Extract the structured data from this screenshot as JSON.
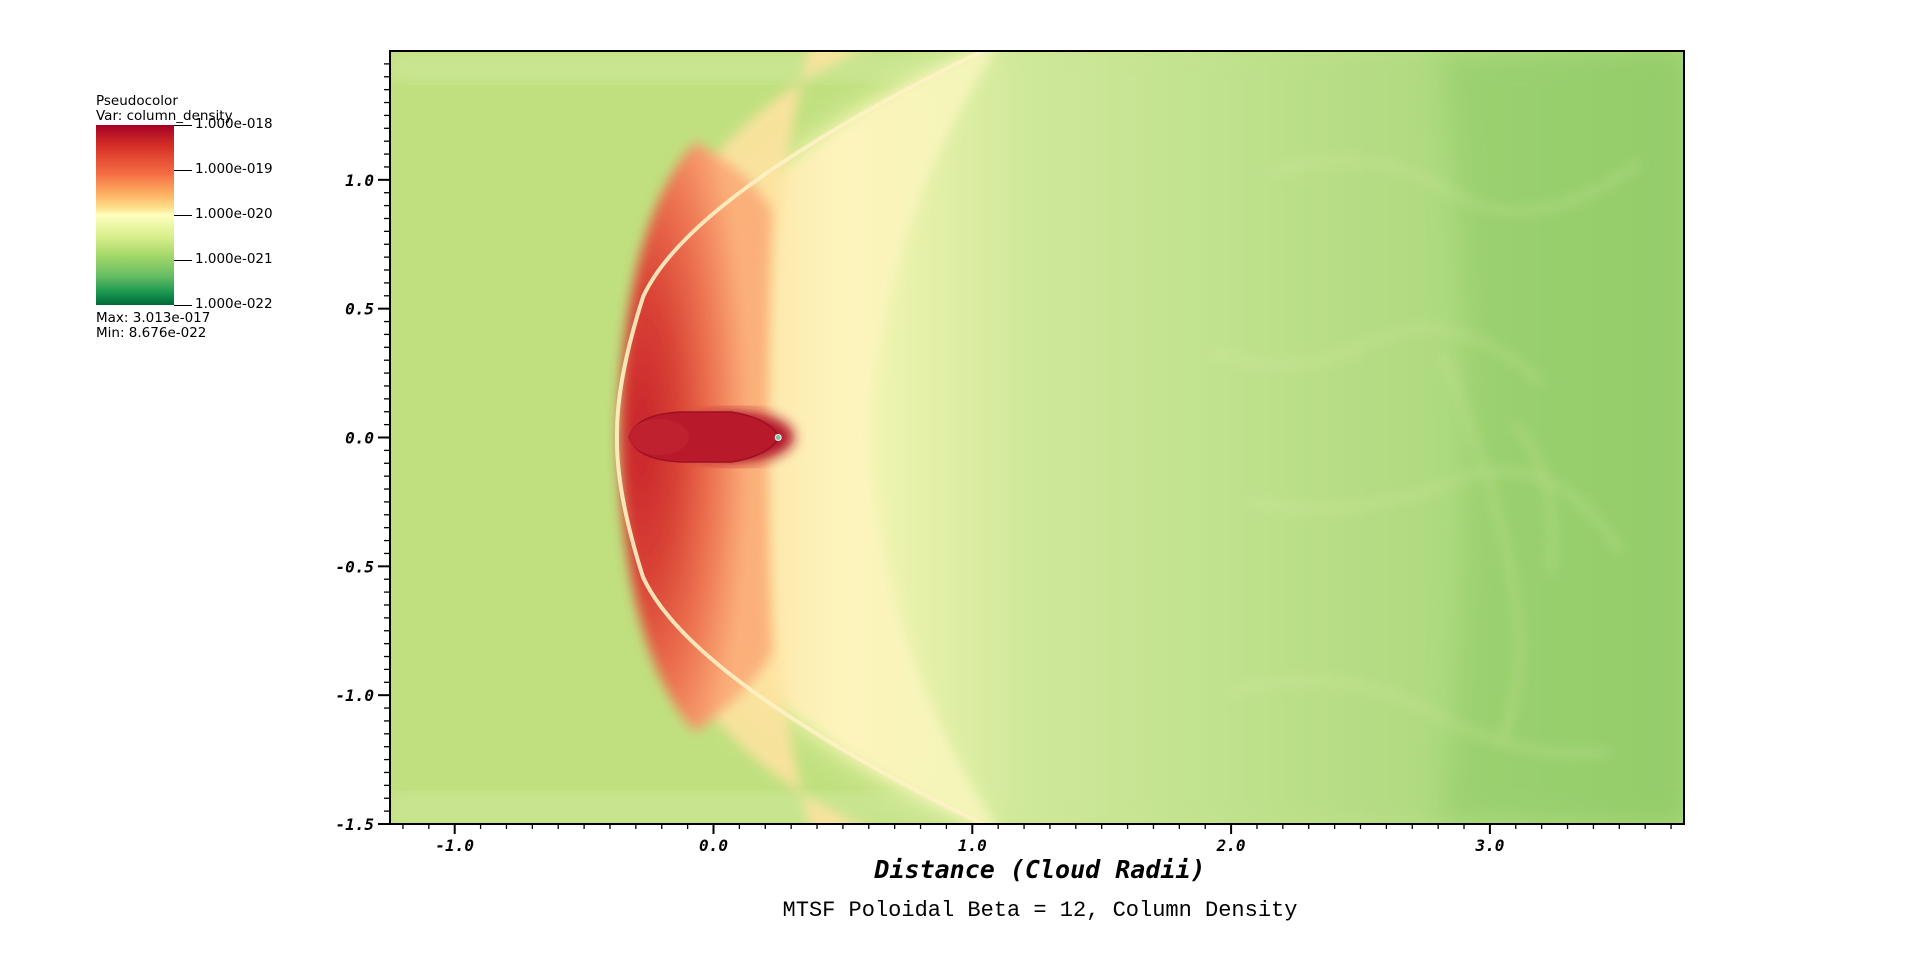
{
  "legend": {
    "plot_type": "Pseudocolor",
    "var_label": "Var: column_density",
    "ticks": [
      "1.000e-018",
      "1.000e-019",
      "1.000e-020",
      "1.000e-021",
      "1.000e-022"
    ],
    "max_label": "Max:  3.013e-017",
    "min_label": "Min:  8.676e-022"
  },
  "caption": "MTSF Poloidal Beta = 12, Column Density",
  "chart_data": {
    "type": "heatmap",
    "title": "MTSF Poloidal Beta = 12, Column Density",
    "xlabel": "Distance (Cloud Radii)",
    "ylabel": "",
    "xlim": [
      -1.25,
      3.75
    ],
    "ylim": [
      -1.5,
      1.5
    ],
    "x_ticks": [
      -1.0,
      0.0,
      1.0,
      2.0,
      3.0
    ],
    "x_tick_labels": [
      "-1.0",
      "0.0",
      "1.0",
      "2.0",
      "3.0"
    ],
    "y_ticks": [
      1.0,
      0.5,
      0.0,
      -0.5,
      -1.0,
      -1.5
    ],
    "y_tick_labels": [
      "1.0",
      "0.5",
      "0.0",
      "-0.5",
      "-1.0",
      "-1.5"
    ],
    "colorbar": {
      "scale": "log",
      "range": [
        1e-22,
        1e-18
      ],
      "colormap": [
        "#006837",
        "#1a9850",
        "#66bd63",
        "#a6d96a",
        "#d9ef8b",
        "#ffffbf",
        "#fee08b",
        "#fdae61",
        "#f46d43",
        "#d73027",
        "#a50026"
      ]
    },
    "background_color": "#c0e080",
    "features": {
      "bow_shock_apex_x": -0.1,
      "cloud_core_x": 0.2,
      "cloud_core_y": 0.0,
      "marker_point": [
        0.25,
        0.0
      ]
    }
  }
}
